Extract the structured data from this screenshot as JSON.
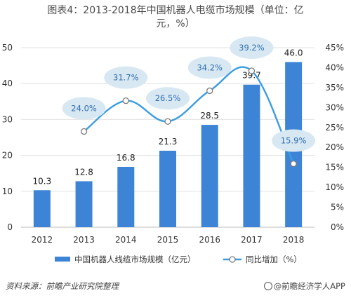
{
  "title": {
    "line1": "图表4：2013-2018年中国机器人电缆市场规模（单位：亿",
    "line2": "元，%）"
  },
  "footer": {
    "source": "资料来源：前瞻产业研究院整理",
    "brand": "@前瞻经济学人APP"
  },
  "colors": {
    "bar": "#3d84d6",
    "line": "#3a9de0",
    "bubble": "#d8e8f3",
    "grid": "#e2e2e2"
  },
  "chart_data": {
    "type": "bar",
    "categories": [
      "2012",
      "2013",
      "2014",
      "2015",
      "2016",
      "2017",
      "2018"
    ],
    "series": [
      {
        "name": "中国机器人线缆市场规模（亿元）",
        "type": "bar",
        "axis": "left",
        "values": [
          10.3,
          12.8,
          16.8,
          21.3,
          28.5,
          39.7,
          46.0
        ],
        "labels": [
          "10.3",
          "12.8",
          "16.8",
          "21.3",
          "28.5",
          "39.7",
          "46.0"
        ]
      },
      {
        "name": "同比增加（%）",
        "type": "line",
        "axis": "right",
        "values": [
          null,
          24.0,
          31.7,
          26.5,
          34.2,
          39.2,
          15.9
        ],
        "labels": [
          "",
          "24.0%",
          "31.7%",
          "26.5%",
          "34.2%",
          "39.2%",
          "15.9%"
        ]
      }
    ],
    "left_axis": {
      "ylim": [
        0,
        50
      ],
      "ticks": [
        "0",
        "10",
        "20",
        "30",
        "40",
        "50"
      ]
    },
    "right_axis": {
      "ylim": [
        0,
        45
      ],
      "ticks": [
        "0%",
        "5%",
        "10%",
        "15%",
        "20%",
        "25%",
        "30%",
        "35%",
        "40%",
        "45%"
      ]
    },
    "legend": {
      "position": "bottom",
      "bar_label": "中国机器人线缆市场规模（亿元）",
      "line_label": "同比增加（%）"
    }
  }
}
